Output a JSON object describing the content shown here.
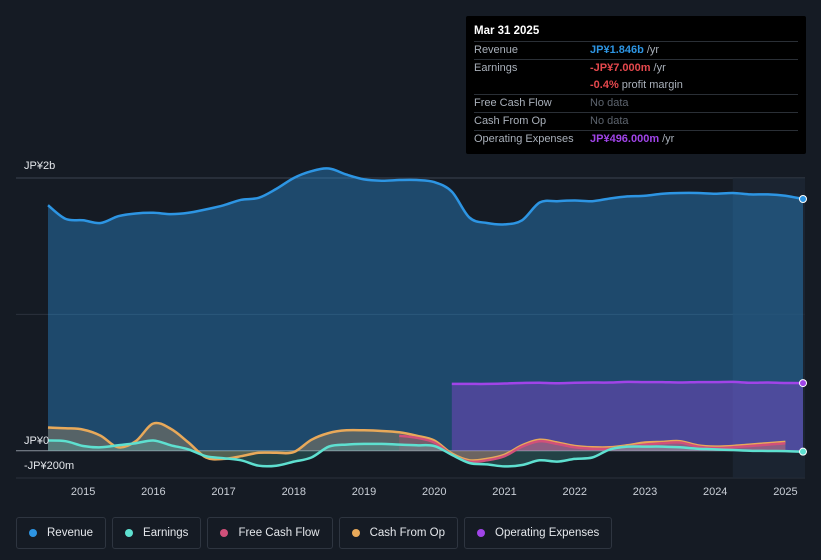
{
  "tooltip": {
    "date": "Mar 31 2025",
    "rows": [
      {
        "label": "Revenue",
        "value": "JP¥1.846b",
        "unit": "/yr",
        "color": "#2d95e3"
      },
      {
        "label": "Earnings",
        "value": "-JP¥7.000m",
        "unit": "/yr",
        "color": "#e5484d"
      },
      {
        "label": "",
        "value": "-0.4%",
        "unit": "profit margin",
        "color": "#e5484d"
      },
      {
        "label": "Free Cash Flow",
        "value": "No data",
        "unit": "",
        "color": "#5d646e"
      },
      {
        "label": "Cash From Op",
        "value": "No data",
        "unit": "",
        "color": "#5d646e"
      },
      {
        "label": "Operating Expenses",
        "value": "JP¥496.000m",
        "unit": "/yr",
        "color": "#a044e8"
      }
    ]
  },
  "legend": [
    {
      "label": "Revenue",
      "color": "#2d95e3"
    },
    {
      "label": "Earnings",
      "color": "#5ee0d0"
    },
    {
      "label": "Free Cash Flow",
      "color": "#d0507a"
    },
    {
      "label": "Cash From Op",
      "color": "#e8a95a"
    },
    {
      "label": "Operating Expenses",
      "color": "#a044e8"
    }
  ],
  "chart_data": {
    "type": "area",
    "y_tick_labels": [
      "JP¥2b",
      "JP¥0",
      "-JP¥200m"
    ],
    "x_tick_labels": [
      "2015",
      "2016",
      "2017",
      "2018",
      "2019",
      "2020",
      "2021",
      "2022",
      "2023",
      "2024",
      "2025"
    ],
    "xlim": [
      2014.5,
      2025.25
    ],
    "ylim": [
      -200,
      2000
    ],
    "unit": "JP¥ millions",
    "forecast_start": 2024.25,
    "series": [
      {
        "name": "Revenue",
        "color": "#2d95e3",
        "x": [
          2014.5,
          2014.75,
          2015.0,
          2015.25,
          2015.5,
          2015.75,
          2016.0,
          2016.25,
          2016.5,
          2016.75,
          2017.0,
          2017.25,
          2017.5,
          2017.75,
          2018.0,
          2018.25,
          2018.5,
          2018.75,
          2019.0,
          2019.25,
          2019.5,
          2019.75,
          2020.0,
          2020.25,
          2020.5,
          2020.75,
          2021.0,
          2021.25,
          2021.5,
          2021.75,
          2022.0,
          2022.25,
          2022.5,
          2022.75,
          2023.0,
          2023.25,
          2023.5,
          2023.75,
          2024.0,
          2024.25,
          2024.5,
          2024.75,
          2025.0,
          2025.25
        ],
        "values": [
          1800,
          1700,
          1690,
          1670,
          1720,
          1740,
          1745,
          1735,
          1745,
          1770,
          1800,
          1840,
          1855,
          1920,
          2000,
          2050,
          2070,
          2025,
          1990,
          1980,
          1985,
          1985,
          1970,
          1900,
          1710,
          1670,
          1660,
          1690,
          1820,
          1830,
          1835,
          1830,
          1850,
          1865,
          1870,
          1885,
          1890,
          1890,
          1885,
          1890,
          1880,
          1880,
          1870,
          1846
        ]
      },
      {
        "name": "Operating Expenses",
        "color": "#a044e8",
        "x": [
          2020.25,
          2020.5,
          2020.75,
          2021.0,
          2021.25,
          2021.5,
          2021.75,
          2022.0,
          2022.25,
          2022.5,
          2022.75,
          2023.0,
          2023.25,
          2023.5,
          2023.75,
          2024.0,
          2024.25,
          2024.5,
          2024.75,
          2025.0,
          2025.25
        ],
        "values": [
          490,
          490,
          490,
          493,
          497,
          498,
          495,
          498,
          500,
          500,
          505,
          503,
          503,
          500,
          503,
          503,
          505,
          498,
          500,
          497,
          496
        ]
      },
      {
        "name": "Cash From Op",
        "color": "#e8a95a",
        "x": [
          2014.5,
          2014.75,
          2015.0,
          2015.25,
          2015.5,
          2015.75,
          2016.0,
          2016.25,
          2016.5,
          2016.75,
          2017.0,
          2017.25,
          2017.5,
          2017.75,
          2018.0,
          2018.25,
          2018.5,
          2018.75,
          2019.0,
          2019.25,
          2019.5,
          2019.75,
          2020.0,
          2020.25,
          2020.5,
          2020.75,
          2021.0,
          2021.25,
          2021.5,
          2021.75,
          2022.0,
          2022.25,
          2022.5,
          2022.75,
          2023.0,
          2023.25,
          2023.5,
          2023.75,
          2024.0,
          2024.25,
          2024.5,
          2024.75,
          2025.0
        ],
        "values": [
          170,
          165,
          155,
          110,
          25,
          70,
          200,
          160,
          60,
          -50,
          -60,
          -40,
          -15,
          -15,
          -10,
          80,
          130,
          150,
          150,
          145,
          135,
          110,
          75,
          -20,
          -70,
          -60,
          -30,
          40,
          80,
          60,
          35,
          25,
          25,
          40,
          60,
          65,
          70,
          40,
          30,
          35,
          45,
          55,
          65
        ]
      },
      {
        "name": "Free Cash Flow",
        "color": "#d0507a",
        "x": [
          2019.5,
          2019.75,
          2020.0,
          2020.25,
          2020.5,
          2020.75,
          2021.0,
          2021.25,
          2021.5,
          2021.75,
          2022.0,
          2022.25,
          2022.5,
          2022.75,
          2023.0,
          2023.25,
          2023.5,
          2023.75,
          2024.0,
          2024.25,
          2024.5,
          2024.75,
          2025.0
        ],
        "values": [
          110,
          95,
          60,
          -30,
          -80,
          -70,
          -40,
          30,
          70,
          50,
          25,
          15,
          15,
          30,
          45,
          55,
          60,
          30,
          20,
          25,
          35,
          45,
          55
        ]
      },
      {
        "name": "Earnings",
        "color": "#5ee0d0",
        "x": [
          2014.5,
          2014.75,
          2015.0,
          2015.25,
          2015.5,
          2015.75,
          2016.0,
          2016.25,
          2016.5,
          2016.75,
          2017.0,
          2017.25,
          2017.5,
          2017.75,
          2018.0,
          2018.25,
          2018.5,
          2018.75,
          2019.0,
          2019.25,
          2019.5,
          2019.75,
          2020.0,
          2020.25,
          2020.5,
          2020.75,
          2021.0,
          2021.25,
          2021.5,
          2021.75,
          2022.0,
          2022.25,
          2022.5,
          2022.75,
          2023.0,
          2023.25,
          2023.5,
          2023.75,
          2024.0,
          2024.25,
          2024.5,
          2024.75,
          2025.0,
          2025.25
        ],
        "values": [
          75,
          70,
          35,
          25,
          40,
          55,
          75,
          40,
          10,
          -40,
          -55,
          -70,
          -110,
          -110,
          -80,
          -50,
          30,
          45,
          50,
          50,
          45,
          40,
          35,
          -30,
          -90,
          -100,
          -115,
          -105,
          -70,
          -80,
          -60,
          -50,
          10,
          30,
          30,
          30,
          25,
          15,
          10,
          5,
          0,
          -2,
          -3,
          -7
        ]
      }
    ]
  }
}
